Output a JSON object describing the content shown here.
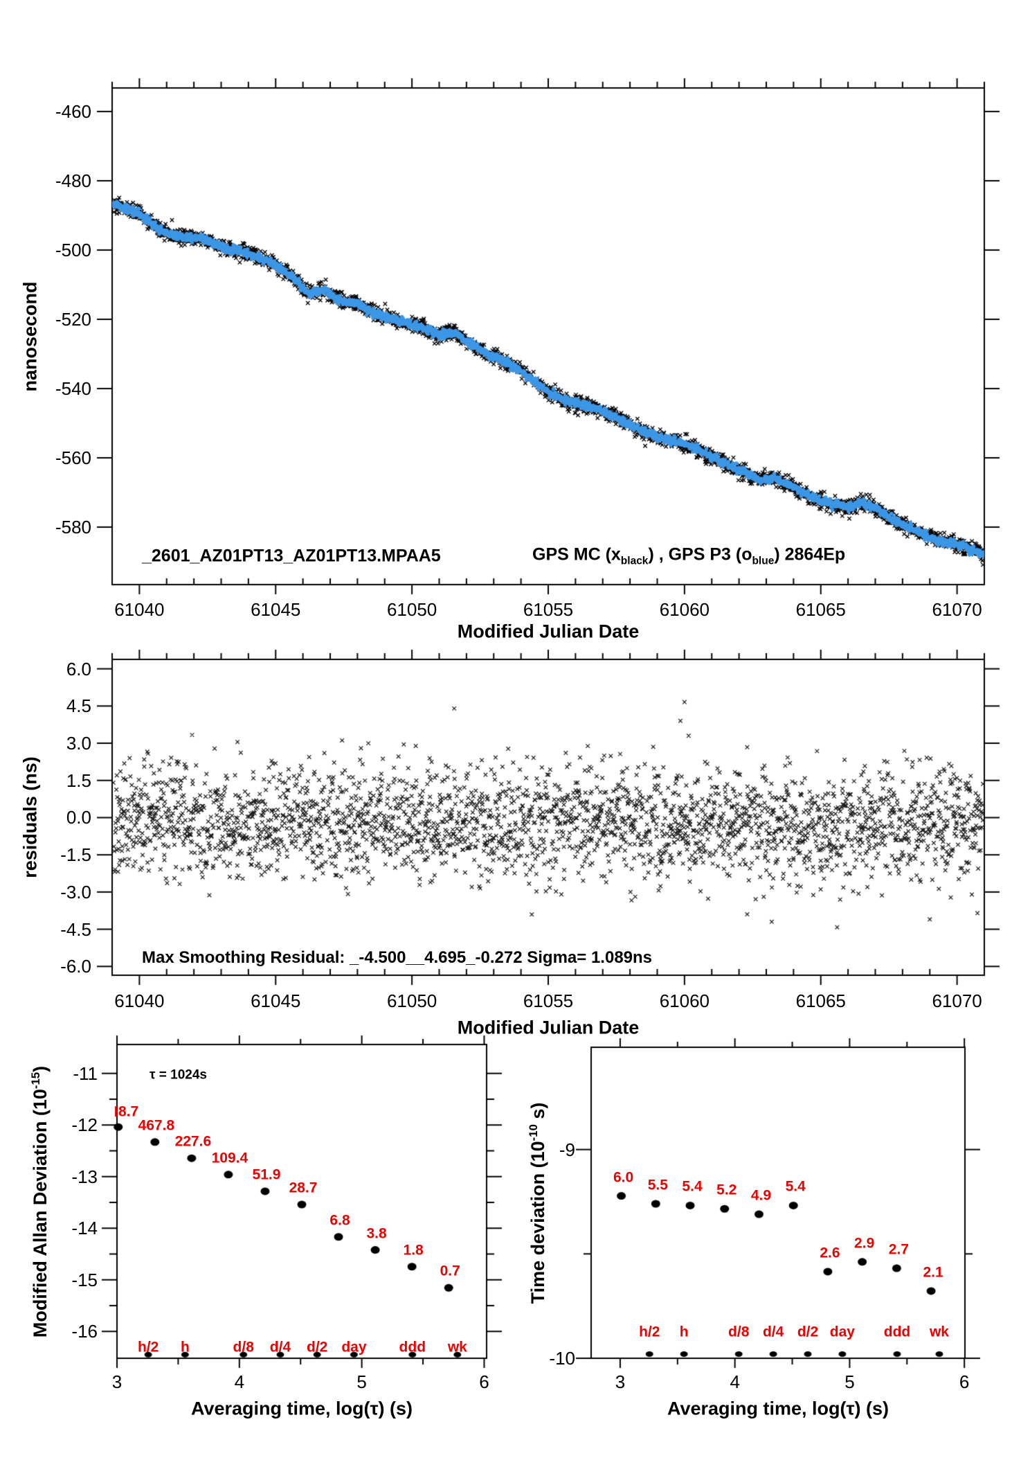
{
  "colors": {
    "accent_red": "#EE0000",
    "series_blue": "#3C96E6",
    "ink": "#000000",
    "background": "#FFFFFF"
  },
  "top_panel": {
    "ylabel": "nanosecond",
    "xlabel": "Modified Julian Date",
    "title_file": "_2601_AZ01PT13_AZ01PT13.MPAA5",
    "title_series": {
      "pre": "GPS MC (x",
      "sub1": "black",
      "mid": ") ,  GPS P3 (o",
      "sub2": "blue",
      "post": ")  2864Ep"
    },
    "x_tick_labels": [
      "61040",
      "61045",
      "61050",
      "61055",
      "61060",
      "61065",
      "61070"
    ],
    "y_tick_labels": [
      "-460",
      "-480",
      "-500",
      "-520",
      "-540",
      "-560",
      "-580"
    ]
  },
  "middle_panel": {
    "ylabel": "residuals (ns)",
    "xlabel": "Modified Julian Date",
    "annotation": "Max Smoothing Residual: _-4.500__4.695_-0.272  Sigma= 1.089ns",
    "x_tick_labels": [
      "61040",
      "61045",
      "61050",
      "61055",
      "61060",
      "61065",
      "61070"
    ],
    "y_tick_labels": [
      "6.0",
      "4.5",
      "3.0",
      "1.5",
      "0.0",
      "-1.5",
      "-3.0",
      "-4.5",
      "-6.0"
    ]
  },
  "mdev_panel": {
    "ylabel": {
      "pre": "Modified Allan Deviation (10",
      "sup": "-15",
      "post": ")"
    },
    "xlabel": "Averaging time, log(τ) (s)",
    "annotation": "τ = 1024s",
    "x_tick_labels": [
      "3",
      "4",
      "5",
      "6"
    ],
    "y_tick_labels": [
      "-11",
      "-12",
      "-13",
      "-14",
      "-15",
      "-16"
    ]
  },
  "tdev_panel": {
    "ylabel": {
      "pre": "Time deviation (10",
      "sup": "-10",
      "post": " s)"
    },
    "xlabel": "Averaging time, log(τ) (s)",
    "x_tick_labels": [
      "3",
      "4",
      "5",
      "6"
    ],
    "y_tick_labels": [
      "-9",
      "-10"
    ]
  },
  "chart_data": [
    {
      "id": "phase",
      "type": "scatter",
      "title": "_2601_AZ01PT13_AZ01PT13.MPAA5  GPS MC (x black) , GPS P3 (o blue)  2864Ep",
      "xlabel": "Modified Julian Date",
      "ylabel": "nanosecond",
      "xlim": [
        61039.0,
        61071.0
      ],
      "ylim": [
        -596.6,
        -453.2
      ],
      "x_major_ticks": [
        61040,
        61045,
        61050,
        61055,
        61060,
        61065,
        61070
      ],
      "x_minor_step": 1,
      "y_major_ticks": [
        -460,
        -480,
        -500,
        -520,
        -540,
        -560,
        -580
      ],
      "series": [
        {
          "name": "GPS MC",
          "marker": "x",
          "color": "#000000",
          "noise_sigma_ns": 1.1,
          "n_points": 2864
        },
        {
          "name": "GPS P3",
          "marker": "o",
          "color": "#3C96E6",
          "noise_sigma_ns": 0.55,
          "n_points": 2864
        }
      ],
      "trend_anchors": [
        [
          61039.2,
          -487.0
        ],
        [
          61040.0,
          -489.5
        ],
        [
          61040.7,
          -494.0
        ],
        [
          61041.3,
          -496.0
        ],
        [
          61042.3,
          -496.5
        ],
        [
          61043.0,
          -499.0
        ],
        [
          61044.0,
          -501.0
        ],
        [
          61044.8,
          -503.5
        ],
        [
          61045.5,
          -507.0
        ],
        [
          61046.2,
          -512.5
        ],
        [
          61046.8,
          -511.5
        ],
        [
          61047.3,
          -514.5
        ],
        [
          61048.0,
          -515.5
        ],
        [
          61048.7,
          -518.5
        ],
        [
          61049.5,
          -520.5
        ],
        [
          61050.2,
          -522.0
        ],
        [
          61051.0,
          -524.5
        ],
        [
          61051.5,
          -523.5
        ],
        [
          61052.0,
          -526.5
        ],
        [
          61052.7,
          -529.5
        ],
        [
          61053.5,
          -532.5
        ],
        [
          61054.2,
          -536.0
        ],
        [
          61055.0,
          -541.0
        ],
        [
          61055.6,
          -543.5
        ],
        [
          61056.2,
          -544.5
        ],
        [
          61057.0,
          -546.5
        ],
        [
          61057.8,
          -549.5
        ],
        [
          61058.5,
          -552.5
        ],
        [
          61059.2,
          -554.5
        ],
        [
          61059.8,
          -555.5
        ],
        [
          61060.5,
          -557.5
        ],
        [
          61061.2,
          -560.5
        ],
        [
          61062.0,
          -563.5
        ],
        [
          61062.8,
          -566.5
        ],
        [
          61063.3,
          -565.8
        ],
        [
          61064.0,
          -568.5
        ],
        [
          61064.7,
          -571.5
        ],
        [
          61065.5,
          -573.5
        ],
        [
          61066.0,
          -574.5
        ],
        [
          61066.5,
          -572.8
        ],
        [
          61067.0,
          -574.5
        ],
        [
          61067.8,
          -578.5
        ],
        [
          61068.5,
          -581.0
        ],
        [
          61069.2,
          -583.5
        ],
        [
          61070.0,
          -585.0
        ],
        [
          61070.5,
          -586.5
        ],
        [
          61071.0,
          -588.0
        ]
      ]
    },
    {
      "id": "residuals",
      "type": "scatter",
      "ylabel": "residuals (ns)",
      "xlabel": "Modified Julian Date",
      "xlim": [
        61039.0,
        61071.0
      ],
      "ylim": [
        -6.355,
        6.38
      ],
      "x_major_ticks": [
        61040,
        61045,
        61050,
        61055,
        61060,
        61065,
        61070
      ],
      "x_minor_step": 1,
      "y_major_ticks": [
        6.0,
        4.5,
        3.0,
        1.5,
        0.0,
        -1.5,
        -3.0,
        -4.5,
        -6.0
      ],
      "stats": {
        "max_neg": -4.5,
        "max_pos": 4.695,
        "offset": -0.272,
        "sigma_ns": 1.089
      },
      "noise": {
        "sigma": 1.15,
        "mean_start": -0.1,
        "mean_drift": -0.25
      },
      "outliers": [
        [
          61051.55,
          4.4
        ],
        [
          61060.0,
          4.66
        ],
        [
          61059.85,
          3.9
        ],
        [
          61060.15,
          3.3
        ],
        [
          61043.6,
          3.05
        ],
        [
          61049.7,
          2.95
        ],
        [
          61063.2,
          -4.2
        ],
        [
          61065.6,
          -4.42
        ],
        [
          61069.0,
          -4.1
        ],
        [
          61062.3,
          -3.9
        ],
        [
          61070.75,
          -3.85
        ]
      ]
    },
    {
      "id": "mdev",
      "type": "scatter",
      "ylabel": "Modified Allan Deviation (10^-15)",
      "xlabel": "Averaging time, log(tau) (s)",
      "annotation": "tau = 1024s",
      "xlim": [
        3.0,
        6.02
      ],
      "ylim": [
        -16.52,
        -10.44
      ],
      "x_major_ticks": [
        3,
        4,
        5,
        6
      ],
      "x_minor_ticks": [
        3.5,
        4.5,
        5.5
      ],
      "y_major_ticks": [
        -11,
        -12,
        -13,
        -14,
        -15,
        -16
      ],
      "y_minor_ticks": [
        -11.5,
        -12.5,
        -13.5,
        -14.5,
        -15.5
      ],
      "points": [
        {
          "log_tau": 3.01,
          "label": "8.7",
          "log_y": -12.04,
          "clipped": true
        },
        {
          "log_tau": 3.31,
          "label": "467.8",
          "log_y": -12.33,
          "clipped": false
        },
        {
          "log_tau": 3.61,
          "label": "227.6",
          "log_y": -12.643,
          "clipped": false
        },
        {
          "log_tau": 3.91,
          "label": "109.4",
          "log_y": -12.961,
          "clipped": false
        },
        {
          "log_tau": 4.21,
          "label": "51.9",
          "log_y": -13.285,
          "clipped": false
        },
        {
          "log_tau": 4.51,
          "label": "28.7",
          "log_y": -13.542,
          "clipped": false
        },
        {
          "log_tau": 4.81,
          "label": "6.8",
          "log_y": -14.168,
          "clipped": false
        },
        {
          "log_tau": 5.11,
          "label": "3.8",
          "log_y": -14.42,
          "clipped": false
        },
        {
          "log_tau": 5.41,
          "label": "1.8",
          "log_y": -14.745,
          "clipped": false
        },
        {
          "log_tau": 5.71,
          "label": "0.7",
          "log_y": -15.155,
          "clipped": false
        }
      ],
      "tau_markers": [
        {
          "label": "h/2",
          "log_tau": 3.2553
        },
        {
          "label": "h",
          "log_tau": 3.5563
        },
        {
          "label": "d/8",
          "log_tau": 4.0334
        },
        {
          "label": "d/4",
          "log_tau": 4.3345
        },
        {
          "label": "d/2",
          "log_tau": 4.6355
        },
        {
          "label": "day",
          "log_tau": 4.9365
        },
        {
          "label": "ddd",
          "log_tau": 5.4137
        },
        {
          "label": "wk",
          "log_tau": 5.7816
        }
      ],
      "marker_row_log_y": -16.45
    },
    {
      "id": "tdev",
      "type": "scatter",
      "ylabel": "Time deviation (10^-10 s)",
      "xlabel": "Averaging time, log(tau) (s)",
      "xlim": [
        2.747,
        6.005
      ],
      "ylim": [
        -10.0,
        -8.51
      ],
      "x_major_ticks": [
        3,
        4,
        5,
        6
      ],
      "x_minor_ticks": [
        3.5,
        4.5,
        5.5
      ],
      "y_major_ticks": [
        -9,
        -10
      ],
      "y_minor_ticks": [
        -9.5
      ],
      "points": [
        {
          "log_tau": 3.01,
          "label": "6.0",
          "log_y": -9.222
        },
        {
          "log_tau": 3.31,
          "label": "5.5",
          "log_y": -9.26
        },
        {
          "log_tau": 3.61,
          "label": "5.4",
          "log_y": -9.268
        },
        {
          "log_tau": 3.91,
          "label": "5.2",
          "log_y": -9.284
        },
        {
          "log_tau": 4.21,
          "label": "4.9",
          "log_y": -9.31
        },
        {
          "log_tau": 4.51,
          "label": "5.4",
          "log_y": -9.268
        },
        {
          "log_tau": 4.81,
          "label": "2.6",
          "log_y": -9.585
        },
        {
          "log_tau": 5.11,
          "label": "2.9",
          "log_y": -9.538
        },
        {
          "log_tau": 5.41,
          "label": "2.7",
          "log_y": -9.569
        },
        {
          "log_tau": 5.71,
          "label": "2.1",
          "log_y": -9.678
        }
      ],
      "tau_markers": [
        {
          "label": "h/2",
          "log_tau": 3.2553
        },
        {
          "label": "h",
          "log_tau": 3.5563
        },
        {
          "label": "d/8",
          "log_tau": 4.0334
        },
        {
          "label": "d/4",
          "log_tau": 4.3345
        },
        {
          "label": "d/2",
          "log_tau": 4.6355
        },
        {
          "label": "day",
          "log_tau": 4.9365
        },
        {
          "label": "ddd",
          "log_tau": 5.4137
        },
        {
          "label": "wk",
          "log_tau": 5.7816
        }
      ],
      "marker_row_log_y": -9.98
    }
  ]
}
